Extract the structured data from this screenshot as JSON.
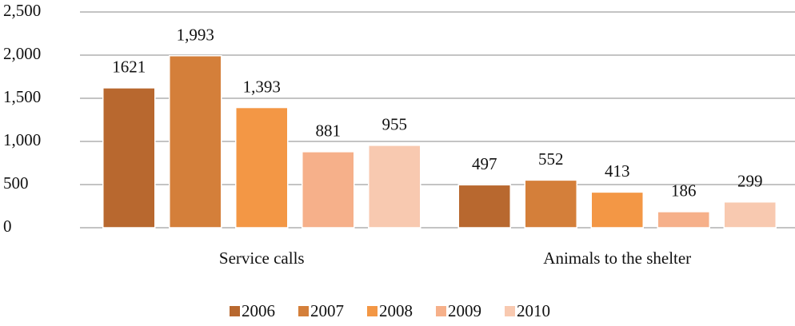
{
  "chart_data": {
    "type": "bar",
    "categories": [
      "Service calls",
      "Animals to the shelter"
    ],
    "series": [
      {
        "name": "2006",
        "color": "#b8682f",
        "values": [
          1621,
          497
        ]
      },
      {
        "name": "2007",
        "color": "#d47f3a",
        "values": [
          1993,
          552
        ],
        "value_labels": [
          "1,993",
          "552"
        ]
      },
      {
        "name": "2008",
        "color": "#f39745",
        "values": [
          1393,
          413
        ],
        "value_labels": [
          "1,393",
          "413"
        ]
      },
      {
        "name": "2009",
        "color": "#f6b08a",
        "values": [
          881,
          186
        ]
      },
      {
        "name": "2010",
        "color": "#f8c9b0",
        "values": [
          955,
          299
        ]
      }
    ],
    "ylim": [
      0,
      2500
    ],
    "yticks": [
      0,
      500,
      {
        "value": 1000,
        "label": "1,000"
      },
      {
        "value": 1500,
        "label": "1,500"
      },
      {
        "value": 2000,
        "label": "2,000"
      },
      {
        "value": 2500,
        "label": "2,500"
      }
    ],
    "grid": true,
    "legend": "bottom"
  }
}
